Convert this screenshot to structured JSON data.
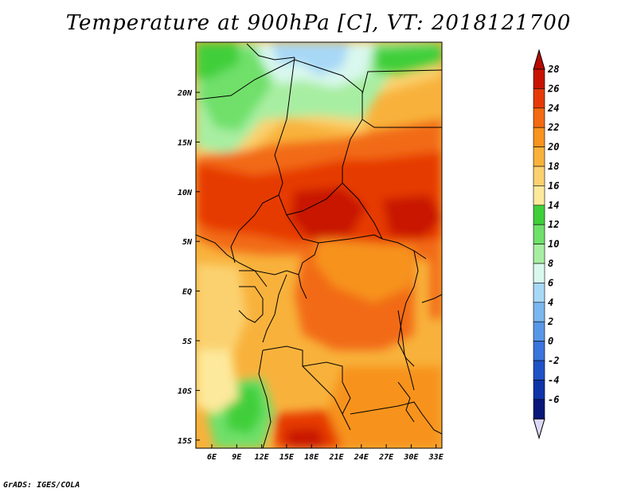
{
  "title": "Temperature at 900hPa [C], VT: 2018121700",
  "footer": "GrADS: IGES/COLA",
  "map": {
    "lon_ticks": [
      "6E",
      "9E",
      "12E",
      "15E",
      "18E",
      "21E",
      "24E",
      "27E",
      "30E",
      "33E"
    ],
    "lat_ticks": [
      "20N",
      "15N",
      "10N",
      "5N",
      "EQ",
      "5S",
      "10S",
      "15S"
    ]
  },
  "colorbar": {
    "levels": [
      "28",
      "26",
      "24",
      "22",
      "20",
      "18",
      "16",
      "14",
      "12",
      "10",
      "8",
      "6",
      "4",
      "2",
      "0",
      "-2",
      "-4",
      "-6"
    ],
    "colors": [
      "#c81200",
      "#e63a06",
      "#f26a12",
      "#f7931e",
      "#f8b23c",
      "#fbd170",
      "#fde99b",
      "#3fcf3a",
      "#6fe06a",
      "#a8eea2",
      "#d9f8ee",
      "#a7d8f6",
      "#7ab6f0",
      "#5897e6",
      "#3a74dc",
      "#1f52c6",
      "#0f34a8",
      "#08177a"
    ],
    "top_arrow_color": "#b80a00",
    "bottom_arrow_color": "#dcd8f8"
  }
}
